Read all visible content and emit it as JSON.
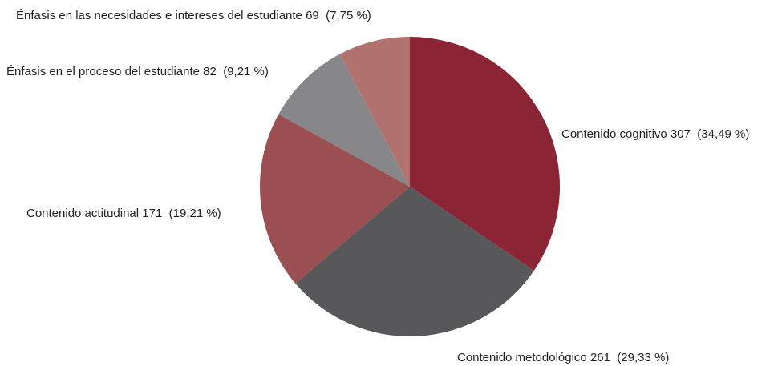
{
  "chart_data": {
    "type": "pie",
    "categories": [
      "Contenido cognitivo",
      "Contenido metodológico",
      "Contenido actitudinal",
      "Énfasis en el proceso del estudiante",
      "Énfasis en las necesidades e intereses del estudiante"
    ],
    "values": [
      307,
      261,
      171,
      82,
      69
    ],
    "value_labels": [
      "307  (34,49 %)",
      "261  (29,33 %)",
      "171  (19,21 %)",
      "82  (9,21 %)",
      "69  (7,75 %)"
    ],
    "colors": [
      "#8b2535",
      "#58585a",
      "#9b4f52",
      "#87878a",
      "#b0716f"
    ]
  }
}
